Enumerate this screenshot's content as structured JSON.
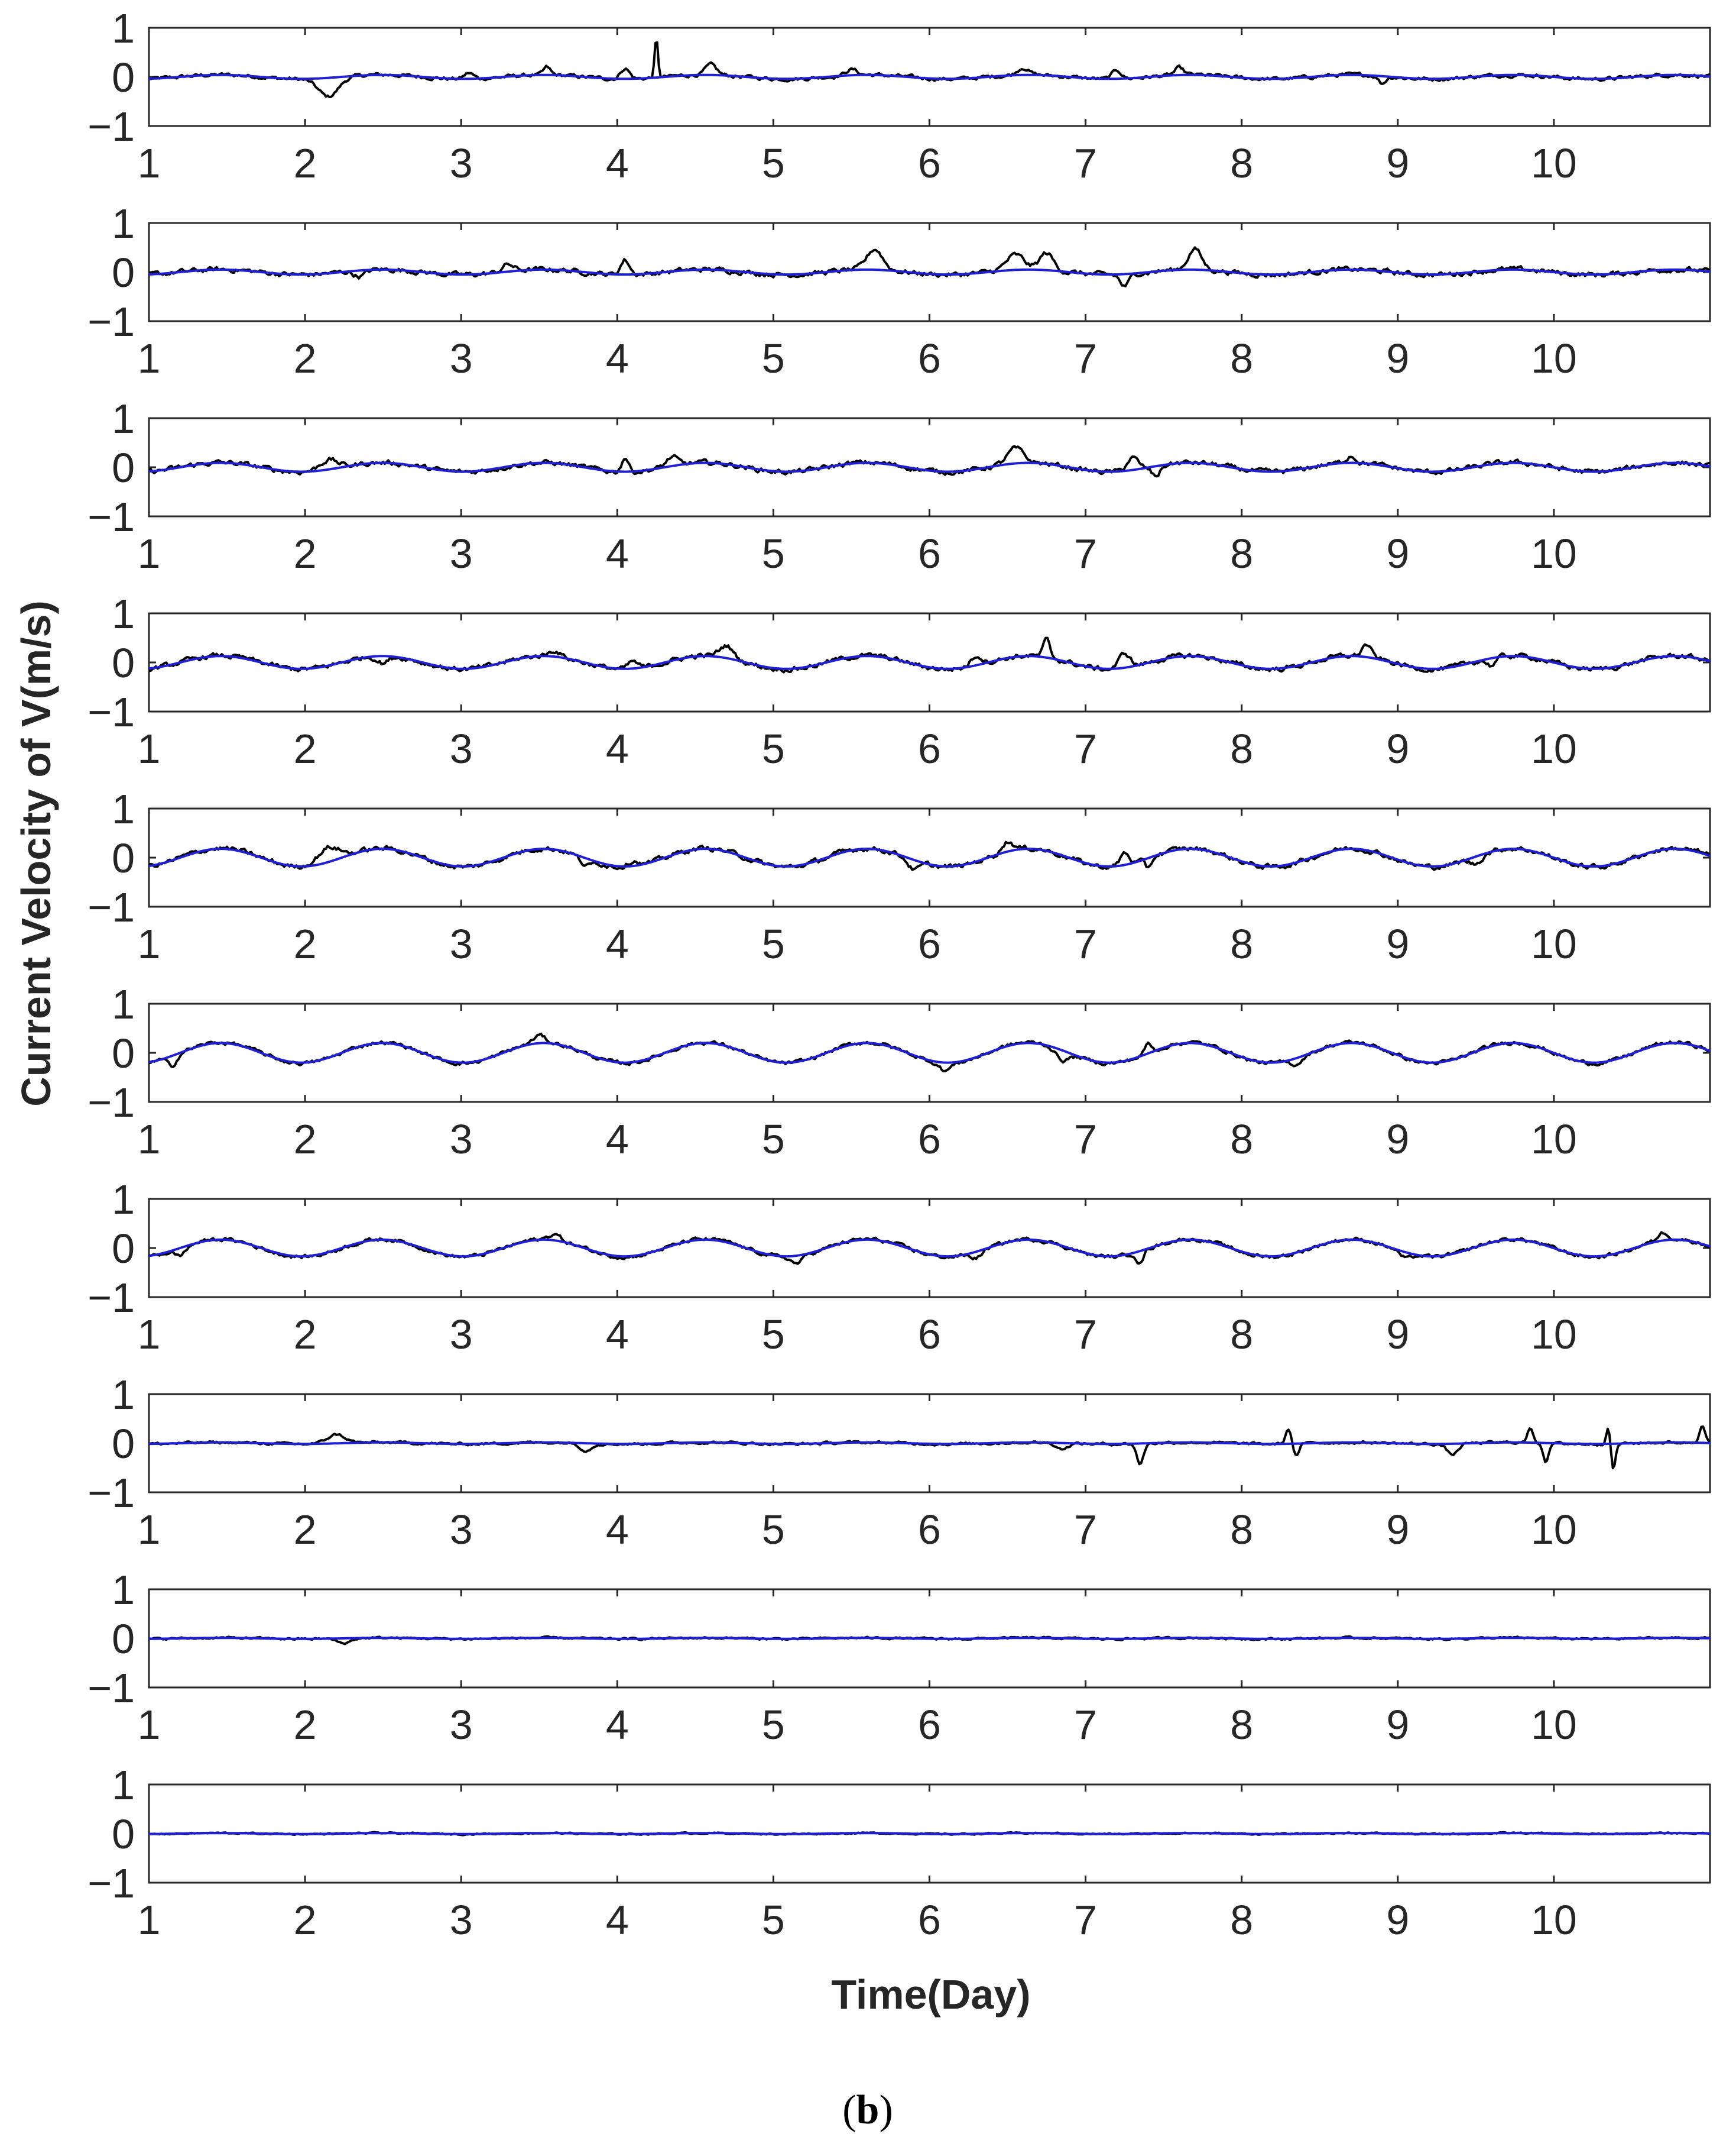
{
  "chart_data": {
    "type": "line",
    "panel_count": 10,
    "ylabel": "Current Velocity of V(m/s)",
    "xlabel": "Time(Day)",
    "caption_label": "b",
    "xlim": [
      1,
      11
    ],
    "ylim": [
      -1,
      1
    ],
    "x_ticks": [
      1,
      2,
      3,
      4,
      5,
      6,
      7,
      8,
      9,
      10
    ],
    "x_tick_labels": [
      "1",
      "2",
      "3",
      "4",
      "5",
      "6",
      "7",
      "8",
      "9",
      "10"
    ],
    "y_ticks": [
      1,
      0,
      -1
    ],
    "y_tick_labels": [
      "1",
      "0",
      "−1"
    ],
    "series_colors": {
      "observed": "#000000",
      "model": "#1f1fd6"
    },
    "panels": [
      {
        "observed_noise": 0.03,
        "model_amp": 0.04,
        "events": [
          [
            2.15,
            -0.38,
            0.09
          ],
          [
            3.05,
            0.12,
            0.04
          ],
          [
            3.55,
            0.15,
            0.03
          ],
          [
            4.05,
            0.22,
            0.04
          ],
          [
            4.25,
            0.78,
            0.015
          ],
          [
            4.6,
            0.2,
            0.05
          ],
          [
            5.5,
            0.12,
            0.05
          ],
          [
            6.6,
            0.15,
            0.05
          ],
          [
            7.2,
            0.18,
            0.04
          ],
          [
            7.6,
            0.14,
            0.04
          ],
          [
            8.9,
            -0.15,
            0.03
          ]
        ]
      },
      {
        "observed_noise": 0.04,
        "model_amp": 0.05,
        "events": [
          [
            2.35,
            -0.12,
            0.05
          ],
          [
            3.3,
            0.15,
            0.05
          ],
          [
            4.05,
            0.3,
            0.04
          ],
          [
            5.65,
            0.42,
            0.07
          ],
          [
            6.55,
            0.3,
            0.08
          ],
          [
            6.75,
            0.35,
            0.06
          ],
          [
            7.25,
            -0.25,
            0.04
          ],
          [
            7.7,
            0.42,
            0.06
          ]
        ]
      },
      {
        "observed_noise": 0.04,
        "model_amp": 0.09,
        "events": [
          [
            2.15,
            0.2,
            0.08
          ],
          [
            4.05,
            0.3,
            0.03
          ],
          [
            4.35,
            0.18,
            0.05
          ],
          [
            6.55,
            0.3,
            0.07
          ],
          [
            7.3,
            0.25,
            0.05
          ],
          [
            7.45,
            -0.2,
            0.04
          ],
          [
            8.7,
            0.15,
            0.04
          ]
        ]
      },
      {
        "observed_noise": 0.04,
        "model_amp": 0.13,
        "events": [
          [
            2.5,
            -0.15,
            0.05
          ],
          [
            3.6,
            0.12,
            0.05
          ],
          [
            4.1,
            0.15,
            0.04
          ],
          [
            4.7,
            0.25,
            0.06
          ],
          [
            6.3,
            0.2,
            0.05
          ],
          [
            6.75,
            0.35,
            0.03
          ],
          [
            7.25,
            0.3,
            0.05
          ],
          [
            8.8,
            0.25,
            0.04
          ],
          [
            9.6,
            -0.15,
            0.04
          ]
        ]
      },
      {
        "observed_noise": 0.04,
        "model_amp": 0.18,
        "events": [
          [
            2.15,
            0.3,
            0.1
          ],
          [
            3.8,
            -0.15,
            0.05
          ],
          [
            4.1,
            0.12,
            0.05
          ],
          [
            5.9,
            -0.2,
            0.05
          ],
          [
            6.5,
            0.2,
            0.05
          ],
          [
            7.25,
            0.25,
            0.04
          ],
          [
            7.4,
            -0.2,
            0.03
          ],
          [
            9.5,
            -0.15,
            0.05
          ]
        ]
      },
      {
        "observed_noise": 0.03,
        "model_amp": 0.2,
        "events": [
          [
            1.15,
            -0.2,
            0.04
          ],
          [
            3.5,
            0.15,
            0.05
          ],
          [
            6.1,
            -0.15,
            0.05
          ],
          [
            6.85,
            -0.2,
            0.06
          ],
          [
            7.4,
            0.2,
            0.03
          ],
          [
            8.35,
            -0.12,
            0.05
          ]
        ]
      },
      {
        "observed_noise": 0.03,
        "model_amp": 0.17,
        "events": [
          [
            1.2,
            -0.15,
            0.05
          ],
          [
            3.6,
            0.12,
            0.05
          ],
          [
            5.15,
            -0.15,
            0.05
          ],
          [
            6.3,
            -0.12,
            0.05
          ],
          [
            7.35,
            -0.25,
            0.03
          ],
          [
            9.05,
            -0.12,
            0.05
          ],
          [
            10.7,
            0.15,
            0.05
          ]
        ]
      },
      {
        "observed_noise": 0.02,
        "model_amp": 0.015,
        "events": [
          [
            2.2,
            0.18,
            0.08
          ],
          [
            3.8,
            -0.15,
            0.05
          ],
          [
            6.85,
            -0.12,
            0.05
          ],
          [
            7.35,
            -0.42,
            0.03
          ],
          [
            8.3,
            0.3,
            0.025
          ],
          [
            8.35,
            -0.25,
            0.025
          ],
          [
            9.35,
            -0.22,
            0.05
          ],
          [
            9.85,
            0.3,
            0.025
          ],
          [
            9.95,
            -0.38,
            0.025
          ],
          [
            10.35,
            0.35,
            0.02
          ],
          [
            10.38,
            -0.55,
            0.02
          ],
          [
            10.95,
            0.38,
            0.025
          ]
        ]
      },
      {
        "observed_noise": 0.015,
        "model_amp": 0.01,
        "events": [
          [
            2.25,
            -0.1,
            0.06
          ]
        ]
      },
      {
        "observed_noise": 0.01,
        "model_amp": 0.01,
        "events": []
      }
    ]
  }
}
